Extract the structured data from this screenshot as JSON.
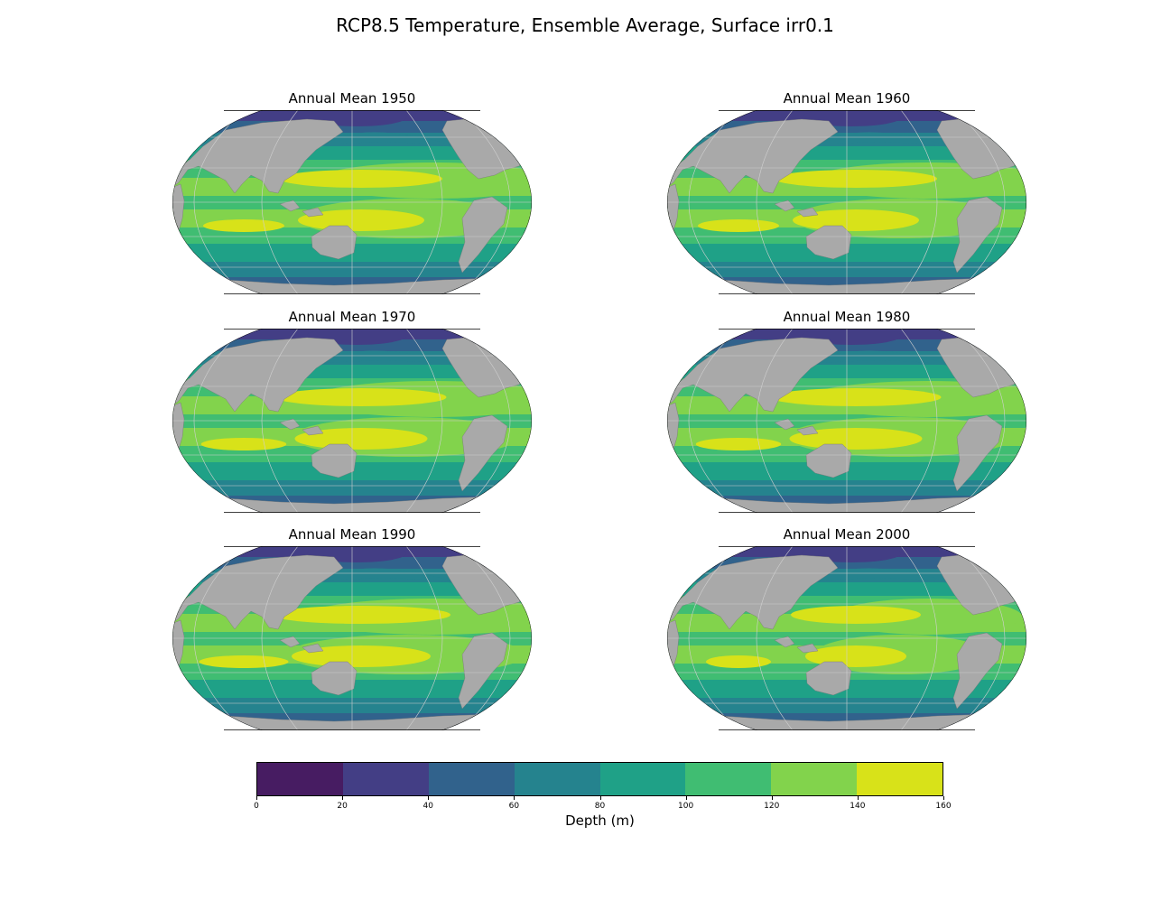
{
  "title": "RCP8.5 Temperature, Ensemble Average, Surface irr0.1",
  "panels": [
    {
      "title": "Annual Mean 1950"
    },
    {
      "title": "Annual Mean 1960"
    },
    {
      "title": "Annual Mean 1970"
    },
    {
      "title": "Annual Mean 1980"
    },
    {
      "title": "Annual Mean 1990"
    },
    {
      "title": "Annual Mean 2000"
    }
  ],
  "colorbar": {
    "label": "Depth (m)",
    "ticks": [
      "0",
      "20",
      "40",
      "60",
      "80",
      "100",
      "120",
      "140",
      "160"
    ],
    "colors": [
      "#471c62",
      "#433e85",
      "#31628c",
      "#25838e",
      "#1fa187",
      "#40bd72",
      "#82d34c",
      "#d8e219"
    ]
  },
  "colors": {
    "land": "#a9a9a9",
    "grid": "#d0d0d0"
  }
}
